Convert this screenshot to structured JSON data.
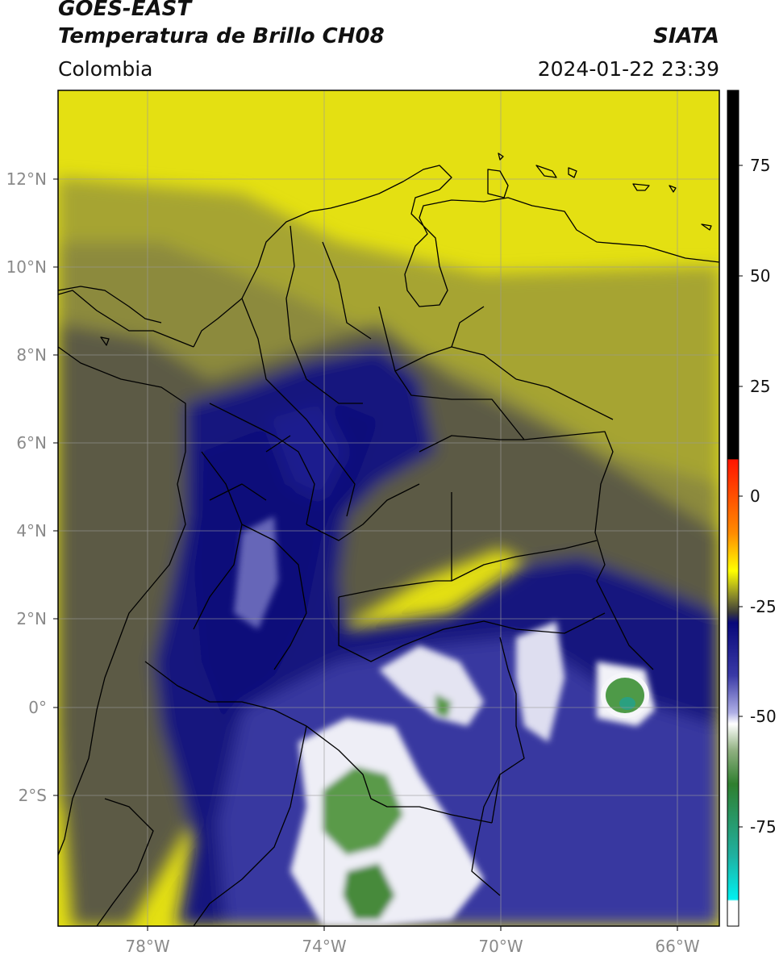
{
  "header": {
    "title_line1": "GOES-EAST",
    "title_line2": "Temperatura de Brillo CH08",
    "organization": "SIATA",
    "region": "Colombia",
    "timestamp": "2024-01-22 23:39"
  },
  "map": {
    "lat_labels": [
      "12°N",
      "10°N",
      "8°N",
      "6°N",
      "4°N",
      "2°N",
      "0°",
      "2°S"
    ],
    "lon_labels": [
      "78°W",
      "74°W",
      "70°W",
      "66°W"
    ],
    "colorbar": {
      "tick_labels": [
        "75",
        "50",
        "25",
        "0",
        "-25",
        "-50",
        "-75"
      ],
      "colors": {
        "warm_black": "#000000",
        "red": "#ff2000",
        "orange": "#ff9900",
        "yellow": "#ffff00",
        "olive": "#8a8a2a",
        "gray": "#4a4a4a",
        "navy": "#08087a",
        "lavender": "#b0b0e6",
        "white": "#ffffff",
        "green": "#2f7f2f",
        "teal": "#20b0a0",
        "cyan": "#00f0f0"
      }
    },
    "land_colors": {
      "yellow": "#e8e40c",
      "olive": "#9a9a30",
      "gray": "#5e5e48",
      "navy": "#1a1a88",
      "blue": "#3a3aa6",
      "white": "#f4f4f8",
      "green": "#4d8c3a"
    }
  }
}
